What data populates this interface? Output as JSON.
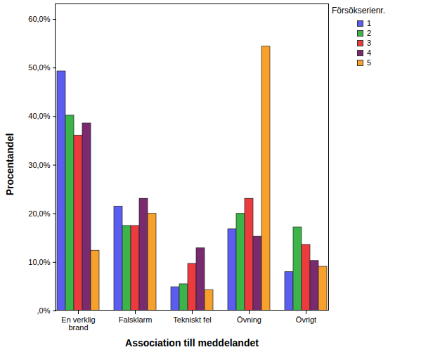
{
  "chart_data": {
    "type": "bar",
    "categories": [
      "En verklig brand",
      "Falsklarm",
      "Tekniskt fel",
      "Övning",
      "Övrigt"
    ],
    "series": [
      {
        "name": "1",
        "color": "#5b5cf0",
        "values": [
          49.3,
          21.5,
          4.9,
          16.8,
          8.0
        ]
      },
      {
        "name": "2",
        "color": "#3cb44a",
        "values": [
          40.2,
          17.5,
          5.5,
          20.0,
          17.2
        ]
      },
      {
        "name": "3",
        "color": "#ec3b3e",
        "values": [
          36.1,
          17.5,
          9.7,
          23.1,
          13.6
        ]
      },
      {
        "name": "4",
        "color": "#7a2a6e",
        "values": [
          38.6,
          23.1,
          12.9,
          15.3,
          10.3
        ]
      },
      {
        "name": "5",
        "color": "#f7a12c",
        "values": [
          12.4,
          20.0,
          4.3,
          54.4,
          9.1
        ]
      }
    ],
    "x_label": "Association till meddelandet",
    "y_label": "Procentandel",
    "legend_title": "Försökserienr.",
    "legend": "top-right",
    "ylim": [
      0,
      60
    ],
    "yticks": [
      {
        "value": 0,
        "label": ",0%"
      },
      {
        "value": 10,
        "label": "10,0%"
      },
      {
        "value": 20,
        "label": "20,0%"
      },
      {
        "value": 30,
        "label": "30,0%"
      },
      {
        "value": 40,
        "label": "40,0%"
      },
      {
        "value": 50,
        "label": "50,0%"
      },
      {
        "value": 60,
        "label": "60,0%"
      }
    ],
    "grid": false
  }
}
